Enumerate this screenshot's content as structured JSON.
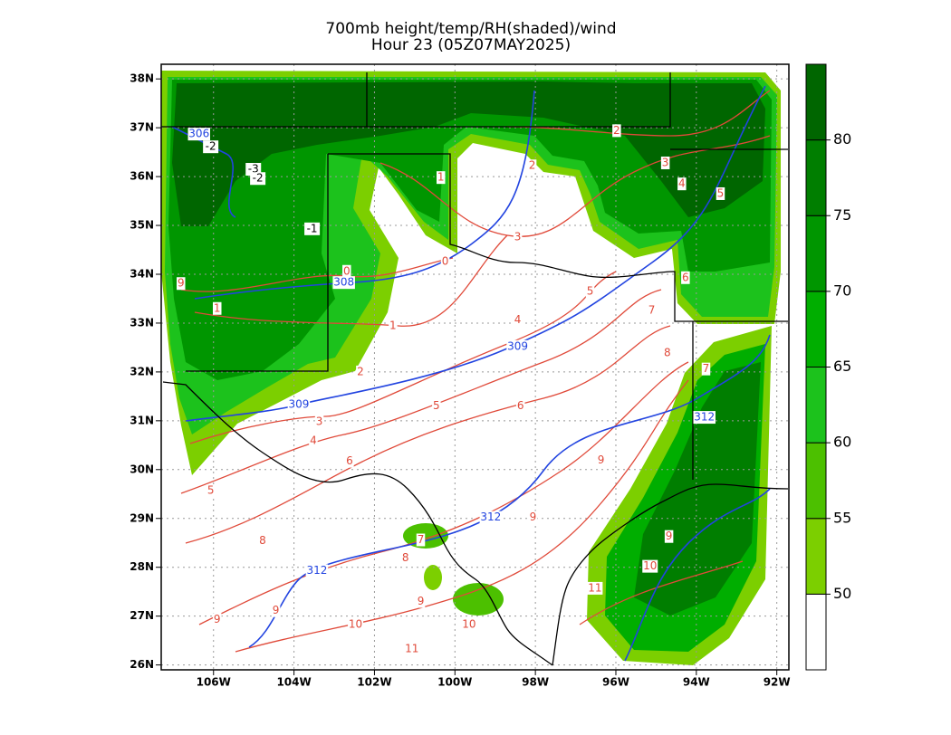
{
  "chart_data": {
    "type": "map",
    "title": "700mb height/temp/RH(shaded)/wind",
    "subtitle": "Hour 23 (05Z07MAY2025)",
    "xlim": [
      -107.3,
      -91.7
    ],
    "ylim": [
      25.9,
      38.3
    ],
    "xticks": [
      {
        "value": -106,
        "label": "106W"
      },
      {
        "value": -104,
        "label": "104W"
      },
      {
        "value": -102,
        "label": "102W"
      },
      {
        "value": -100,
        "label": "100W"
      },
      {
        "value": -98,
        "label": "98W"
      },
      {
        "value": -96,
        "label": "96W"
      },
      {
        "value": -94,
        "label": "94W"
      },
      {
        "value": -92,
        "label": "92W"
      }
    ],
    "yticks": [
      {
        "value": 26,
        "label": "26N"
      },
      {
        "value": 27,
        "label": "27N"
      },
      {
        "value": 28,
        "label": "28N"
      },
      {
        "value": 29,
        "label": "29N"
      },
      {
        "value": 30,
        "label": "30N"
      },
      {
        "value": 31,
        "label": "31N"
      },
      {
        "value": 32,
        "label": "32N"
      },
      {
        "value": 33,
        "label": "33N"
      },
      {
        "value": 34,
        "label": "34N"
      },
      {
        "value": 35,
        "label": "35N"
      },
      {
        "value": 36,
        "label": "36N"
      },
      {
        "value": 37,
        "label": "37N"
      },
      {
        "value": 38,
        "label": "38N"
      }
    ],
    "grid": true,
    "colorbar": {
      "ticks": [
        50,
        55,
        60,
        65,
        70,
        75,
        80
      ],
      "lim": [
        45,
        85
      ],
      "colors": [
        "#7ccf00",
        "#4cc000",
        "#1cc21c",
        "#00ae00",
        "#009600",
        "#007e00",
        "#006600"
      ],
      "below_color": "#ffffff"
    },
    "height_labels": {
      "color": "#2244e0",
      "items": [
        {
          "value": 306,
          "lon": -106.36,
          "lat": 36.87
        },
        {
          "value": 308,
          "lon": -102.76,
          "lat": 33.83
        },
        {
          "value": 309,
          "lon": -98.44,
          "lat": 32.52
        },
        {
          "value": 309,
          "lon": -103.88,
          "lat": 31.33
        },
        {
          "value": 312,
          "lon": -93.8,
          "lat": 31.07
        },
        {
          "value": 312,
          "lon": -99.11,
          "lat": 29.02
        },
        {
          "value": 312,
          "lon": -103.43,
          "lat": 27.93
        }
      ]
    },
    "temperature_labels": {
      "color": "#e04a3a",
      "items": [
        {
          "value": -2,
          "lon": -106.07,
          "lat": 36.61
        },
        {
          "value": -3,
          "lon": -105.01,
          "lat": 36.15
        },
        {
          "value": -2,
          "lon": -104.9,
          "lat": 35.96
        },
        {
          "value": -1,
          "lon": -103.55,
          "lat": 34.93
        },
        {
          "value": 0,
          "lon": -102.69,
          "lat": 34.06
        },
        {
          "value": 0,
          "lon": -100.24,
          "lat": 34.26
        },
        {
          "value": 1,
          "lon": -105.91,
          "lat": 33.3
        },
        {
          "value": 1,
          "lon": -101.54,
          "lat": 32.94
        },
        {
          "value": 1,
          "lon": -100.35,
          "lat": 35.98
        },
        {
          "value": 2,
          "lon": -98.08,
          "lat": 36.22
        },
        {
          "value": 2,
          "lon": -95.98,
          "lat": 36.94
        },
        {
          "value": 3,
          "lon": -94.77,
          "lat": 36.28
        },
        {
          "value": 4,
          "lon": -94.36,
          "lat": 35.85
        },
        {
          "value": 5,
          "lon": -93.4,
          "lat": 35.65
        },
        {
          "value": 3,
          "lon": -98.44,
          "lat": 34.76
        },
        {
          "value": 4,
          "lon": -98.44,
          "lat": 33.06
        },
        {
          "value": 5,
          "lon": -96.64,
          "lat": 33.65
        },
        {
          "value": 6,
          "lon": -94.27,
          "lat": 33.93
        },
        {
          "value": 7,
          "lon": -95.11,
          "lat": 33.26
        },
        {
          "value": 8,
          "lon": -94.72,
          "lat": 32.39
        },
        {
          "value": 7,
          "lon": -93.76,
          "lat": 32.06
        },
        {
          "value": 5,
          "lon": -100.46,
          "lat": 31.3
        },
        {
          "value": 6,
          "lon": -98.37,
          "lat": 31.3
        },
        {
          "value": 3,
          "lon": -103.37,
          "lat": 30.98
        },
        {
          "value": 4,
          "lon": -103.52,
          "lat": 30.59
        },
        {
          "value": 6,
          "lon": -102.62,
          "lat": 30.17
        },
        {
          "value": 5,
          "lon": -106.07,
          "lat": 29.57
        },
        {
          "value": 8,
          "lon": -104.78,
          "lat": 28.54
        },
        {
          "value": 7,
          "lon": -100.85,
          "lat": 28.56
        },
        {
          "value": 8,
          "lon": -101.23,
          "lat": 28.19
        },
        {
          "value": 9,
          "lon": -98.06,
          "lat": 29.02
        },
        {
          "value": 9,
          "lon": -96.37,
          "lat": 30.19
        },
        {
          "value": 9,
          "lon": -94.68,
          "lat": 28.63
        },
        {
          "value": 10,
          "lon": -95.15,
          "lat": 28.02
        },
        {
          "value": 11,
          "lon": -96.52,
          "lat": 27.57
        },
        {
          "value": 9,
          "lon": -100.85,
          "lat": 27.3
        },
        {
          "value": 10,
          "lon": -99.65,
          "lat": 26.83
        },
        {
          "value": 10,
          "lon": -102.47,
          "lat": 26.83
        },
        {
          "value": 11,
          "lon": -101.07,
          "lat": 26.33
        },
        {
          "value": 9,
          "lon": -105.91,
          "lat": 26.93
        },
        {
          "value": 9,
          "lon": -104.45,
          "lat": 27.11
        },
        {
          "value": 9,
          "lon": -106.81,
          "lat": 33.81
        },
        {
          "value": 2,
          "lon": -102.35,
          "lat": 32.0
        }
      ]
    }
  }
}
